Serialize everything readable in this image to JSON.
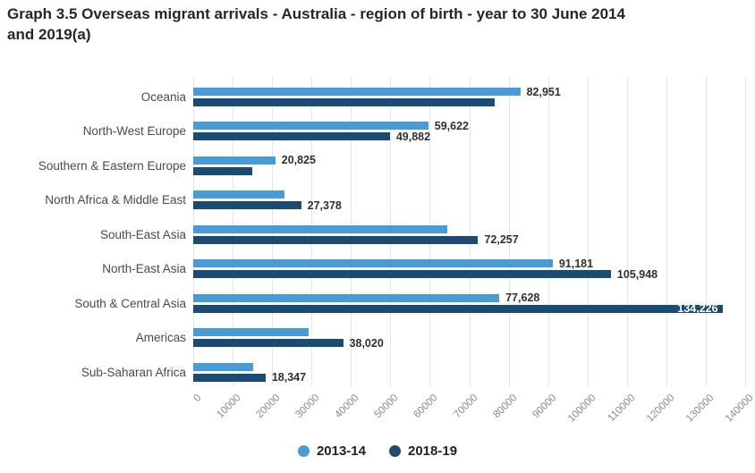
{
  "title": {
    "line1": "Graph 3.5 Overseas migrant arrivals - Australia - region of birth - year to 30 June 2014",
    "line2": "and 2019(a)"
  },
  "chart_data": {
    "type": "bar",
    "orientation": "horizontal-grouped",
    "title": "Graph 3.5 Overseas migrant arrivals - Australia - region of birth - year to 30 June 2014 and 2019(a)",
    "xlabel": "",
    "ylabel": "",
    "xlim": [
      0,
      140000
    ],
    "tick_step": 10000,
    "ticks": [
      "0",
      "10000",
      "20000",
      "30000",
      "40000",
      "50000",
      "60000",
      "70000",
      "80000",
      "90000",
      "100000",
      "110000",
      "120000",
      "130000",
      "140000"
    ],
    "grid": true,
    "legend_position": "bottom-center",
    "categories": [
      "Oceania",
      "North-West Europe",
      "Southern & Eastern Europe",
      "North Africa & Middle East",
      "South-East Asia",
      "North-East Asia",
      "South & Central Asia",
      "Americas",
      "Sub-Saharan Africa"
    ],
    "series": [
      {
        "name": "2013-14",
        "color": "#489BD4",
        "values": [
          82951,
          59622,
          20825,
          23100,
          64400,
          91181,
          77628,
          29300,
          15200
        ],
        "labels": [
          "82,951",
          "59,622",
          "20,825",
          null,
          null,
          "91,181",
          "77,628",
          null,
          null
        ],
        "labels_inside": [
          false,
          false,
          false,
          false,
          false,
          false,
          false,
          false,
          false
        ]
      },
      {
        "name": "2018-19",
        "color": "#1B4A73",
        "values": [
          76500,
          49882,
          15000,
          27378,
          72257,
          105948,
          134226,
          38020,
          18347
        ],
        "labels": [
          null,
          "49,882",
          null,
          "27,378",
          "72,257",
          "105,948",
          "134,226",
          "38,020",
          "18,347"
        ],
        "labels_inside": [
          false,
          false,
          false,
          false,
          false,
          false,
          true,
          false,
          false
        ]
      }
    ],
    "colors": {
      "series_2013_14": "#489BD4",
      "series_2018_19": "#1B4A73",
      "gridline": "#dde6ee",
      "tick_text": "#8a8a8a",
      "category_text": "#4a4a4a",
      "value_text": "#303030",
      "value_text_inside": "#ffffff",
      "title_text": "#262626"
    }
  }
}
